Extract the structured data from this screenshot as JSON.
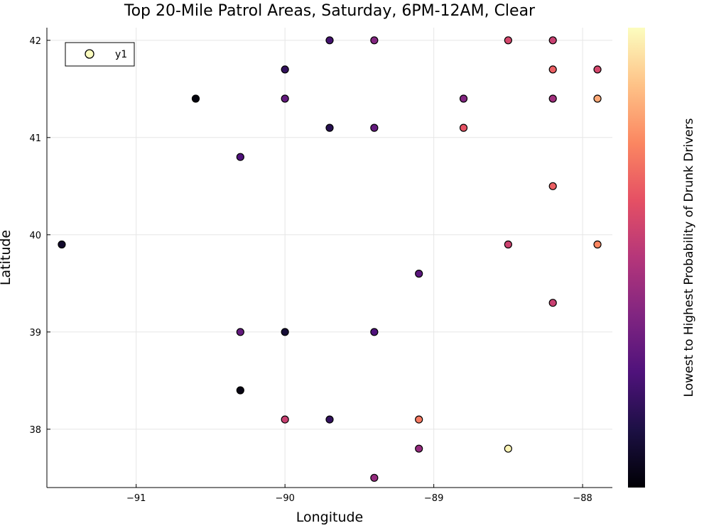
{
  "chart_data": {
    "type": "scatter",
    "title": "Top 20-Mile Patrol Areas, Saturday, 6PM-12AM, Clear",
    "xlabel": "Longitude",
    "ylabel": "Latitude",
    "xlim": [
      -91.6,
      -87.8
    ],
    "ylim": [
      37.4,
      42.13
    ],
    "xticks": [
      -91,
      -90,
      -89,
      -88
    ],
    "xtick_labels": [
      "−91",
      "−90",
      "−89",
      "−88"
    ],
    "yticks": [
      38,
      39,
      40,
      41,
      42
    ],
    "ytick_labels": [
      "38",
      "39",
      "40",
      "41",
      "42"
    ],
    "grid": true,
    "legend": {
      "entries": [
        "y1"
      ],
      "placement": "top-left"
    },
    "colorbar": {
      "label": "Lowest to Highest Probability of Drunk Drivers",
      "colormap": "magma",
      "range": [
        0,
        1
      ]
    },
    "series": [
      {
        "name": "y1",
        "points": [
          {
            "x": -89.7,
            "y": 42.0,
            "c": 0.22
          },
          {
            "x": -89.4,
            "y": 42.0,
            "c": 0.38
          },
          {
            "x": -88.5,
            "y": 42.0,
            "c": 0.58
          },
          {
            "x": -88.2,
            "y": 42.0,
            "c": 0.55
          },
          {
            "x": -90.0,
            "y": 41.7,
            "c": 0.18
          },
          {
            "x": -88.2,
            "y": 41.7,
            "c": 0.66
          },
          {
            "x": -87.9,
            "y": 41.7,
            "c": 0.58
          },
          {
            "x": -90.6,
            "y": 41.4,
            "c": 0.02
          },
          {
            "x": -90.0,
            "y": 41.4,
            "c": 0.3
          },
          {
            "x": -88.8,
            "y": 41.4,
            "c": 0.38
          },
          {
            "x": -88.2,
            "y": 41.4,
            "c": 0.45
          },
          {
            "x": -87.9,
            "y": 41.4,
            "c": 0.82
          },
          {
            "x": -89.7,
            "y": 41.1,
            "c": 0.15
          },
          {
            "x": -89.4,
            "y": 41.1,
            "c": 0.3
          },
          {
            "x": -88.8,
            "y": 41.1,
            "c": 0.63
          },
          {
            "x": -90.3,
            "y": 40.8,
            "c": 0.25
          },
          {
            "x": -88.2,
            "y": 40.5,
            "c": 0.66
          },
          {
            "x": -91.5,
            "y": 39.9,
            "c": 0.08
          },
          {
            "x": -88.5,
            "y": 39.9,
            "c": 0.56
          },
          {
            "x": -87.9,
            "y": 39.9,
            "c": 0.75
          },
          {
            "x": -89.1,
            "y": 39.6,
            "c": 0.28
          },
          {
            "x": -88.2,
            "y": 39.3,
            "c": 0.55
          },
          {
            "x": -90.3,
            "y": 39.0,
            "c": 0.3
          },
          {
            "x": -90.0,
            "y": 39.0,
            "c": 0.1
          },
          {
            "x": -89.4,
            "y": 39.0,
            "c": 0.25
          },
          {
            "x": -90.3,
            "y": 38.4,
            "c": 0.03
          },
          {
            "x": -90.0,
            "y": 38.1,
            "c": 0.55
          },
          {
            "x": -89.7,
            "y": 38.1,
            "c": 0.18
          },
          {
            "x": -89.1,
            "y": 38.1,
            "c": 0.72
          },
          {
            "x": -89.1,
            "y": 37.8,
            "c": 0.42
          },
          {
            "x": -88.5,
            "y": 37.8,
            "c": 0.98
          },
          {
            "x": -89.4,
            "y": 37.5,
            "c": 0.42
          }
        ]
      }
    ]
  }
}
